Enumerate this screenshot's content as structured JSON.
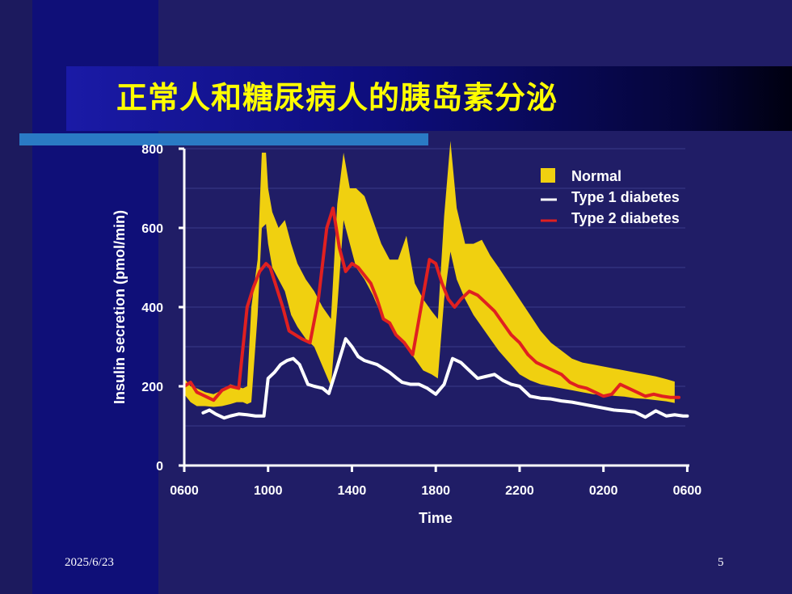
{
  "slide": {
    "title": "正常人和糖尿病人的胰岛素分泌",
    "date": "2025/6/23",
    "page_number": "5"
  },
  "colors": {
    "background": "#201d66",
    "title_text": "#ffff00",
    "normal": "#f0d010",
    "type1": "#ffffff",
    "type2": "#e02020",
    "axis": "#ffffff"
  },
  "chart_data": {
    "type": "line",
    "xlabel": "Time",
    "ylabel": "Insulin secretion (pmol/min)",
    "xlim": [
      6,
      30.1
    ],
    "ylim": [
      0,
      800
    ],
    "x_ticks": [
      {
        "value": 6,
        "label": "0600"
      },
      {
        "value": 10,
        "label": "1000"
      },
      {
        "value": 14,
        "label": "1400"
      },
      {
        "value": 18,
        "label": "1800"
      },
      {
        "value": 22,
        "label": "2200"
      },
      {
        "value": 26,
        "label": "0200"
      },
      {
        "value": 30,
        "label": "0600"
      }
    ],
    "y_ticks": [
      0,
      200,
      400,
      600,
      800
    ],
    "grid": true,
    "legend": {
      "position": "top-right"
    },
    "normal_band": {
      "name": "Normal",
      "x": [
        6.0,
        6.3,
        6.6,
        7.0,
        7.4,
        7.8,
        8.2,
        8.5,
        8.8,
        9.0,
        9.2,
        9.5,
        9.7,
        9.9,
        10.0,
        10.2,
        10.5,
        10.8,
        11.1,
        11.4,
        11.8,
        12.2,
        12.6,
        13.0,
        13.3,
        13.6,
        13.9,
        14.2,
        14.6,
        15.0,
        15.4,
        15.8,
        16.2,
        16.6,
        17.0,
        17.4,
        17.8,
        18.1,
        18.4,
        18.7,
        19.0,
        19.4,
        19.8,
        20.2,
        20.6,
        21.0,
        21.5,
        22.0,
        22.5,
        23.0,
        23.5,
        24.0,
        24.5,
        25.0,
        25.5,
        26.0,
        26.5,
        27.0,
        27.5,
        28.0,
        28.5,
        29.0,
        29.4
      ],
      "upper": [
        220,
        200,
        195,
        185,
        180,
        190,
        205,
        200,
        195,
        200,
        400,
        520,
        790,
        790,
        700,
        640,
        600,
        620,
        560,
        510,
        470,
        440,
        400,
        370,
        660,
        790,
        700,
        700,
        680,
        620,
        560,
        520,
        520,
        580,
        460,
        420,
        390,
        370,
        630,
        820,
        650,
        560,
        560,
        570,
        530,
        500,
        460,
        420,
        380,
        340,
        310,
        290,
        270,
        260,
        255,
        250,
        245,
        240,
        235,
        230,
        225,
        218,
        212
      ],
      "lower": [
        180,
        160,
        150,
        150,
        148,
        150,
        155,
        160,
        160,
        155,
        160,
        380,
        600,
        610,
        560,
        500,
        470,
        440,
        380,
        350,
        320,
        300,
        250,
        200,
        400,
        620,
        560,
        500,
        470,
        430,
        380,
        360,
        320,
        300,
        270,
        240,
        230,
        220,
        420,
        540,
        470,
        420,
        380,
        350,
        320,
        290,
        260,
        230,
        215,
        205,
        200,
        195,
        190,
        185,
        180,
        178,
        176,
        174,
        170,
        168,
        165,
        162,
        158
      ]
    },
    "series": [
      {
        "name": "Type 1 diabetes",
        "x": [
          6.9,
          7.2,
          7.5,
          7.9,
          8.2,
          8.6,
          9.0,
          9.4,
          9.8,
          10.0,
          10.3,
          10.6,
          10.9,
          11.2,
          11.5,
          11.9,
          12.2,
          12.6,
          12.9,
          13.3,
          13.7,
          14.0,
          14.3,
          14.6,
          14.9,
          15.2,
          15.5,
          15.8,
          16.1,
          16.4,
          16.8,
          17.2,
          17.6,
          18.0,
          18.4,
          18.8,
          19.2,
          19.6,
          20.0,
          20.4,
          20.8,
          21.2,
          21.6,
          22.0,
          22.5,
          23.0,
          23.5,
          24.0,
          24.5,
          25.0,
          25.5,
          26.0,
          26.5,
          27.0,
          27.5,
          28.0,
          28.5,
          29.0,
          29.4,
          29.8,
          30.0
        ],
        "values": [
          133,
          140,
          130,
          120,
          125,
          130,
          128,
          125,
          125,
          220,
          235,
          255,
          265,
          270,
          255,
          205,
          200,
          195,
          182,
          250,
          320,
          300,
          275,
          265,
          260,
          255,
          245,
          235,
          222,
          210,
          205,
          205,
          195,
          180,
          205,
          270,
          260,
          240,
          220,
          225,
          230,
          215,
          205,
          200,
          175,
          170,
          168,
          163,
          160,
          155,
          150,
          145,
          140,
          138,
          135,
          122,
          138,
          125,
          128,
          125,
          125
        ]
      },
      {
        "name": "Type 2 diabetes",
        "x": [
          6.0,
          6.3,
          6.6,
          7.0,
          7.4,
          7.8,
          8.2,
          8.6,
          9.0,
          9.3,
          9.6,
          9.9,
          10.1,
          10.4,
          10.7,
          11.0,
          11.3,
          11.6,
          12.0,
          12.4,
          12.8,
          13.1,
          13.4,
          13.7,
          14.0,
          14.3,
          14.6,
          14.9,
          15.2,
          15.5,
          15.8,
          16.1,
          16.5,
          16.9,
          17.3,
          17.7,
          18.0,
          18.3,
          18.6,
          18.9,
          19.2,
          19.6,
          20.0,
          20.4,
          20.8,
          21.2,
          21.6,
          22.0,
          22.4,
          22.8,
          23.2,
          23.6,
          24.0,
          24.4,
          24.8,
          25.2,
          25.6,
          26.0,
          26.4,
          26.8,
          27.2,
          27.6,
          28.0,
          28.4,
          28.8,
          29.2,
          29.6
        ],
        "values": [
          200,
          210,
          185,
          175,
          165,
          190,
          200,
          195,
          400,
          450,
          490,
          510,
          500,
          450,
          400,
          340,
          330,
          320,
          310,
          420,
          600,
          650,
          550,
          490,
          510,
          500,
          480,
          460,
          420,
          370,
          360,
          330,
          310,
          280,
          400,
          520,
          510,
          460,
          420,
          400,
          420,
          440,
          430,
          410,
          390,
          360,
          330,
          310,
          280,
          260,
          250,
          240,
          230,
          210,
          200,
          195,
          185,
          175,
          180,
          205,
          195,
          185,
          175,
          180,
          175,
          172,
          172
        ]
      }
    ]
  }
}
